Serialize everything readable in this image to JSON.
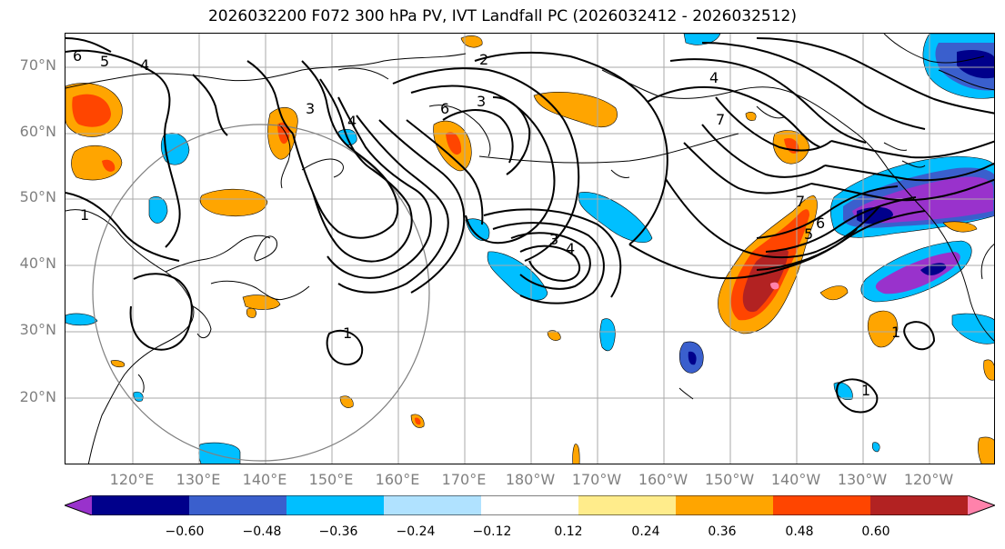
{
  "title": "2026032200 F072 300 hPa PV, IVT Landfall PC (2026032412 - 2026032512)",
  "lat_labels": [
    "70°N",
    "60°N",
    "50°N",
    "40°N",
    "30°N",
    "20°N"
  ],
  "lon_labels": [
    "120°E",
    "130°E",
    "140°E",
    "150°E",
    "160°E",
    "170°E",
    "180°W",
    "170°W",
    "160°W",
    "150°W",
    "140°W",
    "130°W",
    "120°W"
  ],
  "contour_labels": [
    "6",
    "5",
    "4",
    "1",
    "3",
    "2",
    "3",
    "6",
    "4",
    "3",
    "4",
    "4",
    "7",
    "7",
    "6",
    "5",
    "1",
    "1",
    "1"
  ],
  "colorbar": {
    "ticks": [
      "−0.60",
      "−0.48",
      "−0.36",
      "−0.24",
      "−0.12",
      "0.12",
      "0.24",
      "0.36",
      "0.48",
      "0.60"
    ],
    "colors": [
      "#9932CC",
      "#00008B",
      "#3A5FCD",
      "#00BFFF",
      "#B0E2FF",
      "#FFFFFF",
      "#FFEC8B",
      "#FFA500",
      "#FF4500",
      "#B22222",
      "#FF82AB"
    ]
  },
  "colors": {
    "text": "#000000",
    "axis_labels": "#808080",
    "grid": "#aaaaaa",
    "coast": "#000000",
    "circle": "#808080"
  }
}
